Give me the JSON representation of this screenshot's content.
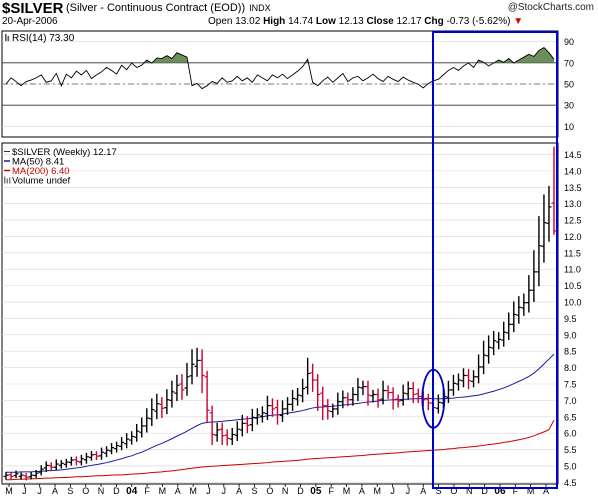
{
  "header": {
    "ticker": "$SILVER",
    "subtitle": "(Silver - Continuous Contract (EOD))",
    "exchange": "INDX",
    "date": "20-Apr-2006",
    "open_label": "Open",
    "open": "13.02",
    "high_label": "High",
    "high": "14.74",
    "low_label": "Low",
    "low": "12.13",
    "close_label": "Close",
    "close": "12.17",
    "chg_label": "Chg",
    "chg": "-0.73 (-5.62%)",
    "down_marker": "▼",
    "brand": "@StockCharts.com"
  },
  "colors": {
    "up_bar": "#000000",
    "down_bar": "#cc0033",
    "ma50": "#1a1aa0",
    "ma200": "#cc0000",
    "rsi_line": "#000000",
    "rsi_fill": "#6b8e5a",
    "highlight": "#0000cc",
    "grid": "#d8d8d8"
  },
  "chart_data": [
    {
      "type": "line",
      "panel": "rsi",
      "legend": "RSI(14) 73.30",
      "ylim": [
        0,
        100
      ],
      "y_ticks": [
        10,
        30,
        50,
        70,
        90
      ],
      "levels": [
        30,
        50,
        70
      ],
      "x_labels": [
        "M",
        "J",
        "J",
        "A",
        "S",
        "O",
        "N",
        "D",
        "04",
        "F",
        "M",
        "A",
        "M",
        "J",
        "J",
        "A",
        "S",
        "O",
        "N",
        "D",
        "05",
        "F",
        "M",
        "A",
        "M",
        "J",
        "J",
        "A",
        "S",
        "O",
        "N",
        "D",
        "06",
        "F",
        "M",
        "A"
      ],
      "values": [
        50.0,
        55.8,
        52.3,
        48.4,
        52.3,
        53.7,
        55.8,
        58.6,
        51.6,
        53.0,
        60.0,
        48.4,
        59.3,
        55.8,
        62.1,
        58.6,
        62.8,
        55.1,
        58.6,
        61.4,
        65.6,
        62.8,
        59.3,
        67.7,
        63.5,
        69.8,
        65.6,
        67.7,
        72.6,
        69.8,
        74.6,
        74.0,
        76.7,
        74.0,
        79.5,
        77.4,
        75.3,
        48.4,
        50.5,
        45.6,
        48.4,
        52.3,
        50.5,
        55.8,
        51.6,
        53.0,
        57.2,
        53.0,
        55.8,
        51.6,
        58.6,
        55.8,
        53.0,
        58.6,
        55.8,
        59.3,
        55.1,
        58.6,
        62.1,
        66.3,
        73.3,
        51.6,
        48.4,
        53.0,
        56.5,
        51.6,
        55.8,
        60.0,
        52.3,
        55.8,
        57.2,
        53.0,
        55.8,
        59.3,
        55.1,
        52.3,
        57.2,
        54.4,
        52.3,
        56.5,
        53.7,
        51.6,
        49.8,
        46.3,
        50.5,
        53.0,
        54.4,
        58.6,
        62.8,
        65.6,
        62.8,
        67.0,
        69.8,
        65.6,
        72.6,
        70.5,
        67.0,
        69.8,
        72.6,
        70.5,
        74.0,
        69.8,
        72.6,
        75.3,
        78.1,
        76.0,
        81.6,
        84.4,
        79.5,
        73.3
      ]
    },
    {
      "type": "ohlc",
      "panel": "price",
      "legend": [
        {
          "label": "$SILVER (Weekly) 12.17",
          "marker": "none"
        },
        {
          "label": "MA(50) 8.41",
          "marker": "ma50"
        },
        {
          "label": "MA(200) 6.40",
          "marker": "ma200"
        },
        {
          "label": "Volume undef",
          "marker": "volume"
        }
      ],
      "ylim": [
        4.45,
        14.85
      ],
      "y_ticks": [
        4.5,
        5.0,
        5.5,
        6.0,
        6.5,
        7.0,
        7.5,
        8.0,
        8.5,
        9.0,
        9.5,
        10.0,
        10.5,
        11.0,
        11.5,
        12.0,
        12.5,
        13.0,
        13.5,
        14.0,
        14.5
      ],
      "x_labels": [
        "M",
        "J",
        "J",
        "A",
        "S",
        "O",
        "N",
        "D",
        "04",
        "F",
        "M",
        "A",
        "M",
        "J",
        "J",
        "A",
        "S",
        "O",
        "N",
        "D",
        "05",
        "F",
        "M",
        "A",
        "M",
        "J",
        "J",
        "A",
        "S",
        "O",
        "N",
        "D",
        "06",
        "F",
        "M",
        "A"
      ],
      "close": [
        4.72,
        4.68,
        4.76,
        4.72,
        4.66,
        4.72,
        4.78,
        4.9,
        5.02,
        4.96,
        5.06,
        5.08,
        5.12,
        5.18,
        5.14,
        5.22,
        5.28,
        5.34,
        5.3,
        5.42,
        5.48,
        5.56,
        5.62,
        5.72,
        5.82,
        5.9,
        6.06,
        6.22,
        6.46,
        6.72,
        6.9,
        6.76,
        7.02,
        7.26,
        7.46,
        7.32,
        7.72,
        8.1,
        8.22,
        7.76,
        6.7,
        5.96,
        6.1,
        5.92,
        5.84,
        5.96,
        6.12,
        6.3,
        6.24,
        6.48,
        6.56,
        6.62,
        6.84,
        6.74,
        6.56,
        6.74,
        6.88,
        7.06,
        7.16,
        7.36,
        7.82,
        7.62,
        7.18,
        6.84,
        6.68,
        6.74,
        6.96,
        7.08,
        7.02,
        7.18,
        7.4,
        7.42,
        7.16,
        7.18,
        7.02,
        7.3,
        7.24,
        7.02,
        6.98,
        7.22,
        7.36,
        7.18,
        7.12,
        7.02,
        6.92,
        6.78,
        6.94,
        7.12,
        7.32,
        7.52,
        7.62,
        7.76,
        7.6,
        7.72,
        8.02,
        8.38,
        8.62,
        8.82,
        8.86,
        9.08,
        9.32,
        9.62,
        9.84,
        9.98,
        10.36,
        10.92,
        11.72,
        12.42,
        12.9,
        12.17
      ],
      "open_offset": [
        0.04,
        -0.05,
        0.05,
        0.04,
        -0.04,
        0.05,
        0.07,
        0.09,
        0.08,
        -0.05,
        0.1,
        0.06,
        0.07,
        0.07,
        -0.05,
        0.1,
        0.09,
        0.08,
        -0.05,
        0.11,
        0.09,
        0.1,
        0.09,
        0.12,
        0.14,
        0.11,
        0.18,
        0.19,
        0.24,
        0.28,
        0.23,
        -0.12,
        0.24,
        0.26,
        0.24,
        -0.18,
        0.34,
        0.35,
        0.18,
        -0.46,
        -1.02,
        -0.66,
        0.16,
        -0.2,
        -0.1,
        0.14,
        0.18,
        0.2,
        -0.06,
        0.22,
        0.1,
        0.1,
        0.24,
        -0.1,
        -0.22,
        0.2,
        0.14,
        0.18,
        0.12,
        0.22,
        0.42,
        -0.22,
        -0.44,
        -0.38,
        -0.16,
        0.08,
        0.22,
        0.12,
        -0.06,
        0.16,
        0.22,
        0.04,
        -0.26,
        0.04,
        -0.16,
        0.26,
        -0.06,
        -0.22,
        -0.06,
        0.22,
        0.16,
        -0.18,
        -0.08,
        -0.1,
        -0.12,
        -0.14,
        0.18,
        0.2,
        0.22,
        0.2,
        0.12,
        0.16,
        -0.16,
        0.14,
        0.3,
        0.36,
        0.26,
        0.22,
        0.08,
        0.24,
        0.26,
        0.3,
        0.24,
        0.16,
        0.38,
        0.56,
        0.8,
        0.72,
        0.5,
        -0.85
      ],
      "high_offset": [
        0.1,
        0.08,
        0.1,
        0.08,
        0.08,
        0.1,
        0.1,
        0.12,
        0.12,
        0.1,
        0.14,
        0.1,
        0.1,
        0.1,
        0.1,
        0.12,
        0.12,
        0.12,
        0.1,
        0.14,
        0.12,
        0.14,
        0.12,
        0.16,
        0.18,
        0.16,
        0.22,
        0.26,
        0.3,
        0.34,
        0.3,
        0.22,
        0.32,
        0.34,
        0.32,
        0.3,
        0.42,
        0.46,
        0.38,
        0.34,
        0.18,
        0.22,
        0.22,
        0.2,
        0.18,
        0.2,
        0.24,
        0.26,
        0.22,
        0.26,
        0.2,
        0.2,
        0.3,
        0.22,
        0.24,
        0.26,
        0.22,
        0.26,
        0.22,
        0.3,
        0.48,
        0.28,
        0.18,
        0.2,
        0.2,
        0.16,
        0.28,
        0.22,
        0.16,
        0.22,
        0.28,
        0.18,
        0.18,
        0.14,
        0.18,
        0.3,
        0.16,
        0.16,
        0.14,
        0.26,
        0.22,
        0.2,
        0.16,
        0.16,
        0.16,
        0.18,
        0.24,
        0.26,
        0.28,
        0.26,
        0.2,
        0.22,
        0.2,
        0.2,
        0.38,
        0.44,
        0.36,
        0.3,
        0.22,
        0.32,
        0.36,
        0.4,
        0.34,
        0.28,
        0.46,
        0.66,
        0.9,
        0.86,
        0.64,
        1.72
      ],
      "low_offset": [
        0.1,
        0.1,
        0.08,
        0.1,
        0.1,
        0.08,
        0.08,
        0.1,
        0.12,
        0.12,
        0.1,
        0.1,
        0.1,
        0.1,
        0.12,
        0.1,
        0.12,
        0.1,
        0.12,
        0.12,
        0.12,
        0.1,
        0.12,
        0.12,
        0.14,
        0.14,
        0.14,
        0.16,
        0.2,
        0.22,
        0.24,
        0.3,
        0.2,
        0.22,
        0.24,
        0.3,
        0.24,
        0.26,
        0.32,
        0.54,
        0.38,
        0.32,
        0.2,
        0.28,
        0.22,
        0.18,
        0.18,
        0.2,
        0.24,
        0.2,
        0.2,
        0.2,
        0.2,
        0.24,
        0.3,
        0.2,
        0.18,
        0.2,
        0.2,
        0.2,
        0.22,
        0.36,
        0.5,
        0.44,
        0.26,
        0.18,
        0.18,
        0.2,
        0.2,
        0.18,
        0.2,
        0.22,
        0.32,
        0.2,
        0.24,
        0.16,
        0.2,
        0.3,
        0.2,
        0.16,
        0.18,
        0.26,
        0.2,
        0.2,
        0.22,
        0.24,
        0.16,
        0.16,
        0.18,
        0.18,
        0.2,
        0.2,
        0.26,
        0.18,
        0.2,
        0.22,
        0.24,
        0.22,
        0.22,
        0.2,
        0.22,
        0.24,
        0.26,
        0.24,
        0.3,
        0.36,
        0.44,
        0.5,
        0.56,
        0.12
      ],
      "ma50": [
        4.81,
        4.81,
        4.81,
        4.82,
        4.82,
        4.82,
        4.83,
        4.84,
        4.85,
        4.86,
        4.87,
        4.88,
        4.9,
        4.92,
        4.94,
        4.96,
        4.99,
        5.02,
        5.04,
        5.07,
        5.1,
        5.14,
        5.18,
        5.22,
        5.27,
        5.31,
        5.37,
        5.42,
        5.49,
        5.56,
        5.63,
        5.69,
        5.76,
        5.83,
        5.91,
        5.98,
        6.06,
        6.15,
        6.23,
        6.3,
        6.33,
        6.34,
        6.35,
        6.36,
        6.38,
        6.39,
        6.41,
        6.43,
        6.44,
        6.46,
        6.48,
        6.5,
        6.53,
        6.55,
        6.56,
        6.58,
        6.61,
        6.63,
        6.66,
        6.69,
        6.73,
        6.77,
        6.79,
        6.8,
        6.81,
        6.82,
        6.84,
        6.86,
        6.87,
        6.89,
        6.91,
        6.93,
        6.95,
        6.96,
        6.98,
        7.0,
        7.01,
        7.02,
        7.02,
        7.03,
        7.04,
        7.05,
        7.05,
        7.06,
        7.06,
        7.05,
        7.05,
        7.05,
        7.06,
        7.07,
        7.09,
        7.1,
        7.12,
        7.14,
        7.16,
        7.2,
        7.24,
        7.28,
        7.33,
        7.38,
        7.44,
        7.51,
        7.58,
        7.65,
        7.73,
        7.83,
        7.96,
        8.11,
        8.26,
        8.41
      ],
      "ma200": [
        4.58,
        4.58,
        4.59,
        4.6,
        4.6,
        4.61,
        4.61,
        4.62,
        4.63,
        4.63,
        4.64,
        4.65,
        4.65,
        4.66,
        4.67,
        4.67,
        4.68,
        4.69,
        4.7,
        4.7,
        4.71,
        4.72,
        4.73,
        4.73,
        4.74,
        4.75,
        4.76,
        4.77,
        4.78,
        4.8,
        4.81,
        4.82,
        4.84,
        4.85,
        4.87,
        4.89,
        4.91,
        4.93,
        4.95,
        4.97,
        4.98,
        4.99,
        5.0,
        5.01,
        5.02,
        5.03,
        5.04,
        5.05,
        5.06,
        5.07,
        5.08,
        5.09,
        5.1,
        5.12,
        5.13,
        5.14,
        5.15,
        5.16,
        5.17,
        5.19,
        5.21,
        5.22,
        5.23,
        5.24,
        5.25,
        5.26,
        5.27,
        5.28,
        5.29,
        5.3,
        5.31,
        5.32,
        5.34,
        5.35,
        5.36,
        5.37,
        5.38,
        5.39,
        5.4,
        5.42,
        5.43,
        5.44,
        5.45,
        5.46,
        5.47,
        5.48,
        5.49,
        5.5,
        5.52,
        5.53,
        5.55,
        5.56,
        5.58,
        5.59,
        5.61,
        5.63,
        5.65,
        5.67,
        5.69,
        5.72,
        5.74,
        5.77,
        5.8,
        5.83,
        5.87,
        5.92,
        5.98,
        6.04,
        6.11,
        6.4
      ]
    }
  ]
}
